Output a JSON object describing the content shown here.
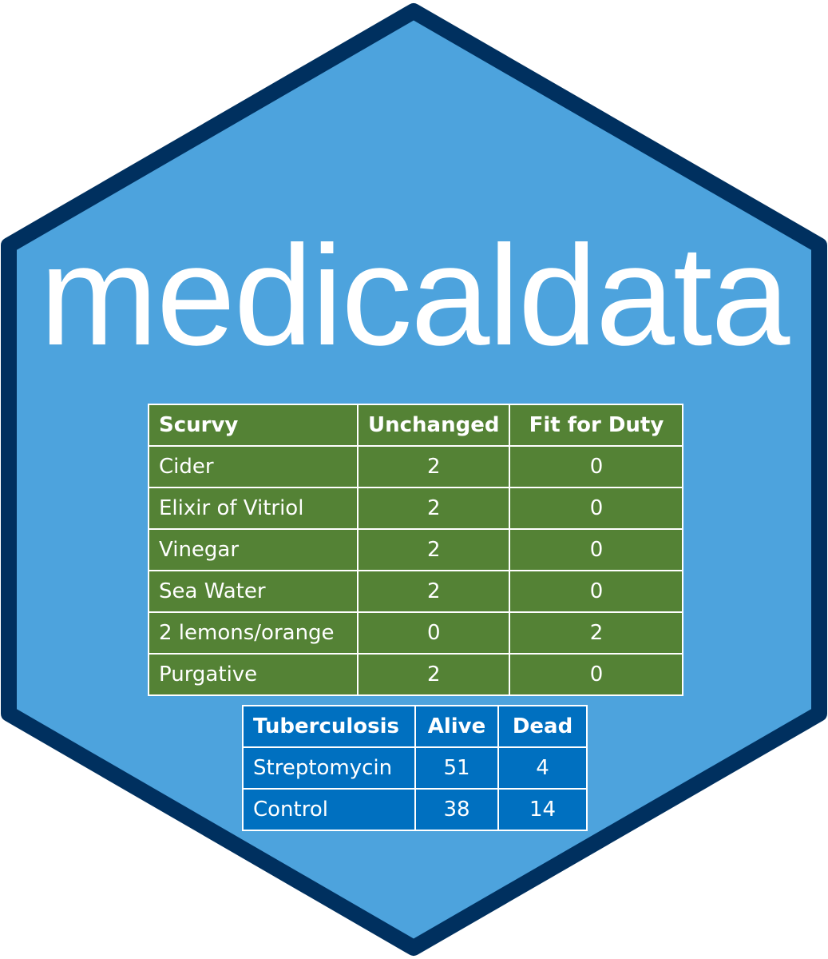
{
  "title": "medicaldata",
  "colors": {
    "hex_fill": "#4DA3DD",
    "hex_border": "#00305F",
    "scurvy_table": "#548235",
    "tb_table": "#0070C0",
    "text": "#FFFFFF"
  },
  "scurvy": {
    "headers": [
      "Scurvy",
      "Unchanged",
      "Fit for Duty"
    ],
    "rows": [
      [
        "Cider",
        "2",
        "0"
      ],
      [
        "Elixir of Vitriol",
        "2",
        "0"
      ],
      [
        "Vinegar",
        "2",
        "0"
      ],
      [
        "Sea Water",
        "2",
        "0"
      ],
      [
        "2 lemons/orange",
        "0",
        "2"
      ],
      [
        "Purgative",
        "2",
        "0"
      ]
    ]
  },
  "tuberculosis": {
    "headers": [
      "Tuberculosis",
      "Alive",
      "Dead"
    ],
    "rows": [
      [
        "Streptomycin",
        "51",
        "4"
      ],
      [
        "Control",
        "38",
        "14"
      ]
    ]
  }
}
